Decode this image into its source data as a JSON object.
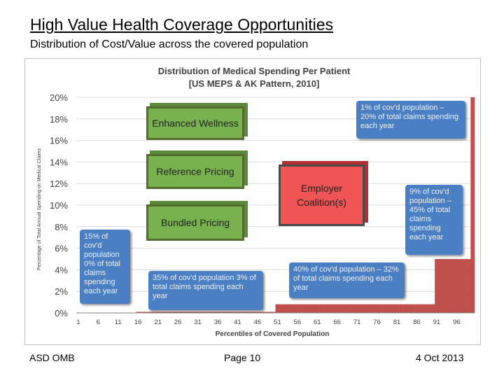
{
  "slide": {
    "title": "High Value Health Coverage Opportunities",
    "subtitle": "Distribution of Cost/Value across the covered population",
    "footer_left": "ASD OMB",
    "footer_center": "Page 10",
    "footer_right": "4 Oct 2013"
  },
  "chart_data": {
    "type": "bar",
    "title": "Distribution of Medical Spending Per Patient",
    "subtitle": "[US MEPS & AK Pattern, 2010]",
    "xlabel": "Percentiles of Covered Population",
    "ylabel": "Percentage of Total Annual Spending on Medical Claims",
    "ylim": [
      0,
      20
    ],
    "yticks": [
      "0%",
      "2%",
      "4%",
      "6%",
      "8%",
      "10%",
      "12%",
      "14%",
      "16%",
      "18%",
      "20%"
    ],
    "xticks": [
      "1",
      "6",
      "11",
      "16",
      "21",
      "26",
      "31",
      "36",
      "41",
      "46",
      "51",
      "56",
      "61",
      "66",
      "71",
      "76",
      "81",
      "86",
      "91",
      "96"
    ],
    "grid": true,
    "bar_color": "#c0504d",
    "segments": [
      {
        "from_percentile": 1,
        "to_percentile": 15,
        "value": 0
      },
      {
        "from_percentile": 16,
        "to_percentile": 50,
        "value": 0.1
      },
      {
        "from_percentile": 51,
        "to_percentile": 90,
        "value": 0.8
      },
      {
        "from_percentile": 91,
        "to_percentile": 99,
        "value": 5.0
      },
      {
        "from_percentile": 100,
        "to_percentile": 100,
        "value": 20.0
      }
    ]
  },
  "annotations": {
    "enhanced_wellness": "Enhanced Wellness",
    "reference_pricing": "Reference Pricing",
    "bundled_pricing": "Bundled Pricing",
    "employer_coalitions": "Employer Coalition(s)",
    "note_top1": "1% of cov'd population – 20% of total claims spending each year",
    "note_9pct": "9% of cov'd population – 45% of total claims spending each year",
    "note_15pct": "15% of cov'd population 0% of total claims spending each year",
    "note_35pct": "35% of cov'd population 3% of total claims spending each year",
    "note_40pct": "40% of cov'd population – 32% of total claims spending each year"
  },
  "colors": {
    "green_box": "#77b24f",
    "red_box": "#f05454",
    "blue_note": "#4a7fc4",
    "bar": "#c0504d"
  }
}
